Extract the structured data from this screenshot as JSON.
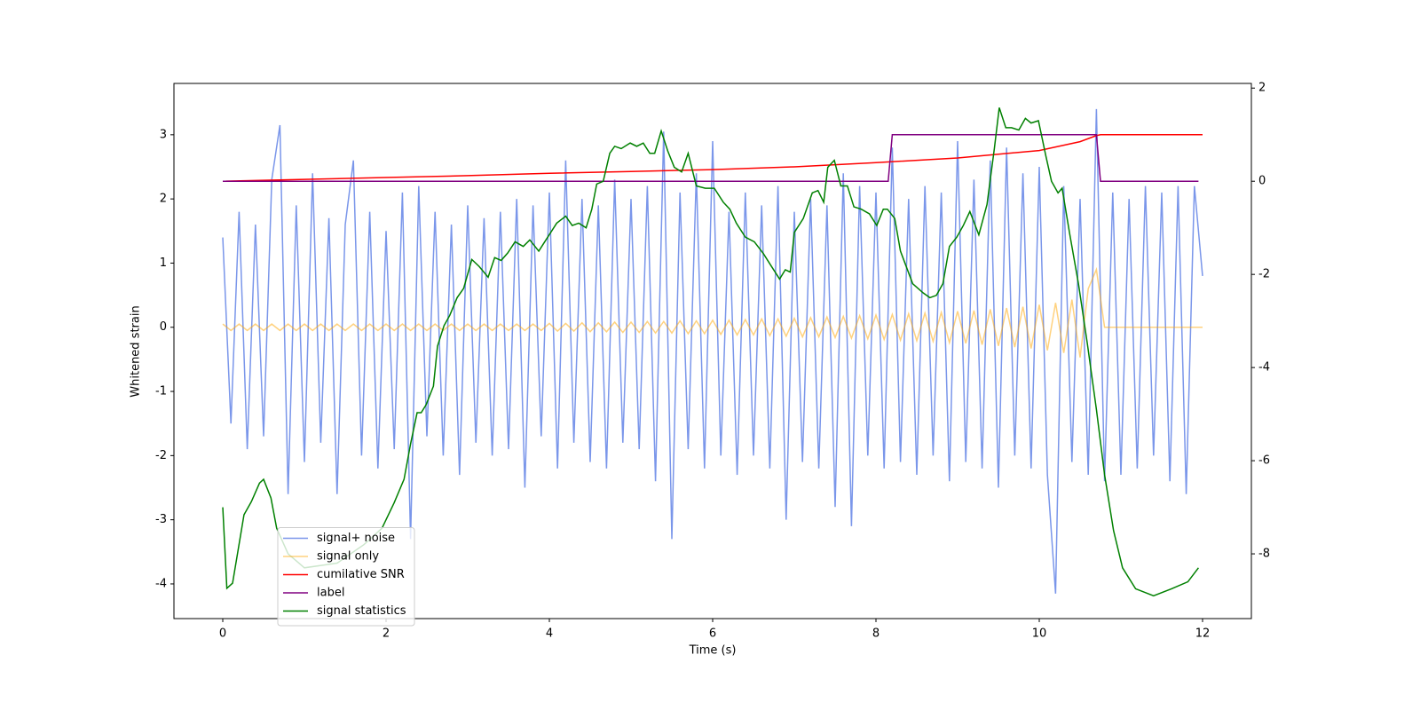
{
  "chart_data": {
    "type": "line",
    "xlabel": "Time (s)",
    "ylabel": "Whitened strain",
    "xlim": [
      -0.598,
      12.598
    ],
    "xticks": [
      0,
      2,
      4,
      6,
      8,
      10,
      12
    ],
    "ylim": [
      -4.54,
      3.8
    ],
    "yticks": [
      -4,
      -3,
      -2,
      -1,
      0,
      1,
      2,
      3
    ],
    "y2lim": [
      -9.39,
      2.1
    ],
    "y2ticks": [
      -8,
      -6,
      -4,
      -2,
      0,
      2
    ],
    "legend": "lower left",
    "x": [
      0,
      0.1,
      0.2,
      0.3,
      0.4,
      0.5,
      0.6,
      0.7,
      0.8,
      0.9,
      1,
      1.1,
      1.2,
      1.3,
      1.4,
      1.5,
      1.6,
      1.7,
      1.8,
      1.9,
      2,
      2.1,
      2.2,
      2.3,
      2.4,
      2.5,
      2.6,
      2.7,
      2.8,
      2.9,
      3,
      3.1,
      3.2,
      3.3,
      3.4,
      3.5,
      3.6,
      3.7,
      3.8,
      3.9,
      4,
      4.1,
      4.2,
      4.3,
      4.4,
      4.5,
      4.6,
      4.7,
      4.8,
      4.9,
      5,
      5.1,
      5.2,
      5.3,
      5.4,
      5.5,
      5.6,
      5.7,
      5.8,
      5.9,
      6,
      6.1,
      6.2,
      6.3,
      6.4,
      6.5,
      6.6,
      6.7,
      6.8,
      6.9,
      7,
      7.1,
      7.2,
      7.3,
      7.4,
      7.5,
      7.6,
      7.7,
      7.8,
      7.9,
      8,
      8.1,
      8.2,
      8.3,
      8.4,
      8.5,
      8.6,
      8.7,
      8.8,
      8.9,
      9,
      9.1,
      9.2,
      9.3,
      9.4,
      9.5,
      9.6,
      9.7,
      9.8,
      9.9,
      10,
      10.1,
      10.2,
      10.3,
      10.4,
      10.5,
      10.6,
      10.7,
      10.8,
      10.9,
      11,
      11.1,
      11.2,
      11.3,
      11.4,
      11.5,
      11.6,
      11.7,
      11.8,
      11.9,
      12
    ],
    "series": [
      {
        "name": "signal+ noise",
        "color": "#4169e1",
        "opacity": 0.7,
        "values": [
          1.4,
          -1.5,
          1.8,
          -1.9,
          1.6,
          -1.7,
          2.3,
          3.15,
          -2.6,
          1.9,
          -2.1,
          2.4,
          -1.8,
          1.7,
          -2.6,
          1.6,
          2.6,
          -2.0,
          1.8,
          -2.2,
          1.5,
          -1.9,
          2.1,
          -3.3,
          2.2,
          -1.7,
          1.8,
          -2.0,
          1.6,
          -2.3,
          1.9,
          -1.8,
          1.7,
          -2.0,
          1.8,
          -1.9,
          2.0,
          -2.5,
          1.9,
          -1.7,
          2.1,
          -2.2,
          2.6,
          -1.8,
          2.0,
          -2.1,
          1.9,
          -2.2,
          2.3,
          -1.8,
          2.0,
          -1.9,
          2.2,
          -2.4,
          3.05,
          -3.3,
          2.1,
          -1.9,
          2.4,
          -2.2,
          2.9,
          -2.0,
          1.8,
          -2.3,
          2.1,
          -2.0,
          1.9,
          -2.2,
          2.2,
          -3.0,
          1.8,
          -2.1,
          2.0,
          -2.2,
          1.9,
          -2.8,
          2.4,
          -3.1,
          2.2,
          -2.0,
          2.1,
          -2.2,
          2.8,
          -2.1,
          2.0,
          -2.3,
          2.2,
          -2.0,
          2.1,
          -2.4,
          2.9,
          -2.1,
          2.3,
          -2.2,
          2.6,
          -2.5,
          2.8,
          -2.0,
          2.4,
          -2.2,
          2.5,
          -2.3,
          -4.15,
          2.2,
          -2.1,
          2.0,
          -2.3,
          3.4,
          -2.4,
          2.1,
          -2.3,
          2.0,
          -2.2,
          2.2,
          -2.0,
          2.1,
          -2.4,
          2.2,
          -2.6,
          2.2,
          0.8
        ]
      },
      {
        "name": "signal only",
        "color": "#ffa500",
        "opacity": 0.5,
        "values": [
          0.05,
          -0.05,
          0.05,
          -0.05,
          0.05,
          -0.05,
          0.05,
          -0.05,
          0.05,
          -0.05,
          0.05,
          -0.05,
          0.05,
          -0.05,
          0.05,
          -0.05,
          0.05,
          -0.05,
          0.05,
          -0.05,
          0.05,
          -0.05,
          0.05,
          -0.05,
          0.05,
          -0.05,
          0.05,
          -0.05,
          0.05,
          -0.05,
          0.05,
          -0.05,
          0.05,
          -0.05,
          0.05,
          -0.05,
          0.05,
          -0.05,
          0.05,
          -0.05,
          0.06,
          -0.06,
          0.06,
          -0.06,
          0.07,
          -0.07,
          0.07,
          -0.07,
          0.08,
          -0.08,
          0.08,
          -0.08,
          0.09,
          -0.09,
          0.09,
          -0.09,
          0.1,
          -0.1,
          0.1,
          -0.1,
          0.11,
          -0.11,
          0.11,
          -0.12,
          0.12,
          -0.12,
          0.13,
          -0.13,
          0.13,
          -0.14,
          0.14,
          -0.15,
          0.15,
          -0.15,
          0.16,
          -0.16,
          0.17,
          -0.17,
          0.18,
          -0.18,
          0.19,
          -0.19,
          0.2,
          -0.2,
          0.21,
          -0.21,
          0.22,
          -0.22,
          0.23,
          -0.24,
          0.25,
          -0.25,
          0.26,
          -0.27,
          0.28,
          -0.29,
          0.3,
          -0.31,
          0.32,
          -0.33,
          0.35,
          -0.36,
          0.38,
          -0.4,
          0.43,
          -0.47,
          0.6,
          0.9,
          0,
          0,
          0,
          0,
          0,
          0,
          0,
          0,
          0,
          0,
          0,
          0,
          0
        ]
      },
      {
        "name": "cumilative SNR",
        "color": "#ff0000",
        "axis": "y2",
        "x": [
          0,
          1,
          2,
          3,
          4,
          5,
          6,
          7,
          8,
          9,
          10,
          10.5,
          10.7,
          10.75,
          12
        ],
        "values": [
          0,
          0.04,
          0.08,
          0.12,
          0.17,
          0.21,
          0.25,
          0.31,
          0.4,
          0.5,
          0.66,
          0.85,
          0.98,
          1,
          1
        ]
      },
      {
        "name": "label",
        "color": "#800080",
        "axis": "y2",
        "x": [
          0,
          8.15,
          8.2,
          10.7,
          10.75,
          11.95
        ],
        "values": [
          0,
          0,
          1,
          1,
          0,
          0
        ]
      },
      {
        "name": "signal statistics",
        "color": "#008000",
        "axis": "y2",
        "x": [
          0,
          0.05,
          0.12,
          0.26,
          0.35,
          0.45,
          0.5,
          0.59,
          0.66,
          0.8,
          1,
          1.4,
          1.73,
          1.95,
          2.1,
          2.22,
          2.3,
          2.38,
          2.43,
          2.49,
          2.58,
          2.63,
          2.71,
          2.78,
          2.87,
          2.95,
          3.05,
          3.14,
          3.25,
          3.33,
          3.41,
          3.49,
          3.58,
          3.68,
          3.76,
          3.87,
          3.98,
          4.09,
          4.2,
          4.28,
          4.36,
          4.45,
          4.52,
          4.58,
          4.66,
          4.74,
          4.8,
          4.88,
          4.99,
          5.07,
          5.15,
          5.23,
          5.29,
          5.37,
          5.45,
          5.53,
          5.62,
          5.7,
          5.8,
          5.91,
          6.02,
          6.13,
          6.21,
          6.29,
          6.4,
          6.51,
          6.62,
          6.71,
          6.82,
          6.89,
          6.95,
          7,
          7.11,
          7.22,
          7.29,
          7.36,
          7.41,
          7.49,
          7.57,
          7.65,
          7.73,
          7.82,
          7.92,
          8.01,
          8.09,
          8.14,
          8.23,
          8.3,
          8.45,
          8.58,
          8.66,
          8.74,
          8.82,
          8.9,
          8.99,
          9.07,
          9.15,
          9.26,
          9.36,
          9.45,
          9.51,
          9.59,
          9.66,
          9.75,
          9.83,
          9.9,
          9.99,
          10.08,
          10.15,
          10.23,
          10.28,
          10.37,
          10.48,
          10.59,
          10.7,
          10.8,
          10.91,
          11.02,
          11.18,
          11.4,
          11.62,
          11.82,
          11.95
        ],
        "values": [
          -7.0,
          -8.74,
          -8.63,
          -7.16,
          -6.88,
          -6.48,
          -6.4,
          -6.8,
          -7.45,
          -8.0,
          -8.3,
          -8.2,
          -7.8,
          -7.45,
          -6.9,
          -6.4,
          -5.64,
          -4.97,
          -4.97,
          -4.8,
          -4.4,
          -3.54,
          -3.1,
          -2.88,
          -2.5,
          -2.3,
          -1.68,
          -1.83,
          -2.06,
          -1.64,
          -1.7,
          -1.54,
          -1.3,
          -1.4,
          -1.26,
          -1.5,
          -1.2,
          -0.9,
          -0.75,
          -0.95,
          -0.9,
          -1.0,
          -0.6,
          -0.06,
          0,
          0.6,
          0.75,
          0.7,
          0.82,
          0.75,
          0.82,
          0.6,
          0.6,
          1.08,
          0.65,
          0.3,
          0.2,
          0.6,
          -0.1,
          -0.15,
          -0.15,
          -0.45,
          -0.6,
          -0.9,
          -1.2,
          -1.3,
          -1.55,
          -1.8,
          -2.1,
          -1.9,
          -1.95,
          -1.1,
          -0.8,
          -0.25,
          -0.2,
          -0.45,
          0.3,
          0.45,
          -0.1,
          -0.1,
          -0.55,
          -0.6,
          -0.7,
          -0.95,
          -0.6,
          -0.6,
          -0.8,
          -1.5,
          -2.2,
          -2.4,
          -2.5,
          -2.45,
          -2.2,
          -1.4,
          -1.2,
          -0.95,
          -0.65,
          -1.15,
          -0.5,
          0.7,
          1.58,
          1.15,
          1.15,
          1.1,
          1.35,
          1.25,
          1.3,
          0.55,
          0.0,
          -0.25,
          -0.15,
          -1.1,
          -2.2,
          -3.5,
          -4.9,
          -6.3,
          -7.5,
          -8.3,
          -8.75,
          -8.9,
          -8.75,
          -8.6,
          -8.3
        ]
      }
    ]
  }
}
